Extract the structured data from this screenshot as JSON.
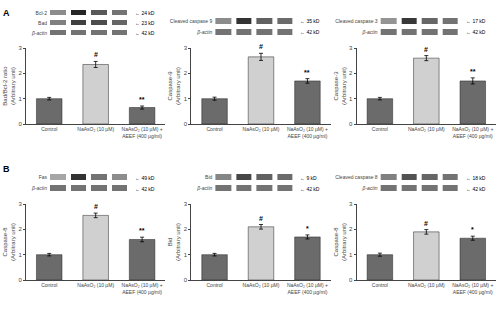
{
  "chart_data": [
    {
      "type": "bar",
      "section": "A",
      "ylabel": "Bad/Bcl-2 ratio\n(Arbitrary unit)",
      "categories": [
        "Control",
        "NaAsO₂ (10 µM)",
        "NaAsO₂ (10 µM) +\nAEEF (400 µg/ml)"
      ],
      "values": [
        1.0,
        2.35,
        0.65
      ],
      "errors": [
        0.05,
        0.12,
        0.06
      ],
      "colors": [
        "#6b6b6b",
        "#d0d0d0",
        "#6b6b6b"
      ],
      "ylim": [
        0,
        3
      ],
      "yticks": [
        0,
        1,
        2,
        3
      ],
      "grid": false,
      "annotations": [
        null,
        "#",
        "**"
      ],
      "blot": {
        "labels": [
          "Bcl-2",
          "Bad",
          "β-actin"
        ],
        "italic": [
          false,
          false,
          true
        ],
        "kd_labels": [
          "← 24 kD",
          "← 23 kD",
          "← 42 kD"
        ],
        "bands": [
          [
            0.45,
            0.85,
            0.65,
            0.55
          ],
          [
            0.5,
            0.75,
            0.7,
            0.6
          ],
          [
            0.55,
            0.55,
            0.55,
            0.55
          ]
        ],
        "zlim": [
          0,
          1
        ]
      }
    },
    {
      "type": "bar",
      "section": "A",
      "ylabel": "Caspase-9\n(Arbitrary unit)",
      "categories": [
        "Control",
        "NaAsO₂ (10 µM)",
        "NaAsO₂ (10 µM) +\nAEEF (400 µg/ml)"
      ],
      "values": [
        1.0,
        2.65,
        1.7
      ],
      "errors": [
        0.06,
        0.14,
        0.09
      ],
      "colors": [
        "#6b6b6b",
        "#d0d0d0",
        "#6b6b6b"
      ],
      "ylim": [
        0,
        3
      ],
      "yticks": [
        0,
        1,
        2,
        3
      ],
      "grid": false,
      "annotations": [
        null,
        "#",
        "**"
      ],
      "blot": {
        "labels": [
          "Cleaved caspase 9",
          "β-actin"
        ],
        "italic": [
          false,
          true
        ],
        "kd_labels": [
          "← 35 kD",
          "← 42 kD"
        ],
        "bands": [
          [
            0.45,
            0.8,
            0.62,
            0.58
          ],
          [
            0.55,
            0.55,
            0.55,
            0.55
          ]
        ],
        "zlim": [
          0,
          1
        ]
      }
    },
    {
      "type": "bar",
      "section": "A",
      "ylabel": "Caspase-3\n(Arbitrary unit)",
      "categories": [
        "Control",
        "NaAsO₂ (10 µM)",
        "NaAsO₂ (10 µM) +\nAEEF (400 µg/ml)"
      ],
      "values": [
        1.0,
        2.6,
        1.7
      ],
      "errors": [
        0.05,
        0.1,
        0.12
      ],
      "colors": [
        "#6b6b6b",
        "#d0d0d0",
        "#6b6b6b"
      ],
      "ylim": [
        0,
        3
      ],
      "yticks": [
        0,
        1,
        2,
        3
      ],
      "grid": false,
      "annotations": [
        null,
        "#",
        "**"
      ],
      "blot": {
        "labels": [
          "Cleaved caspase 3",
          "β-actin"
        ],
        "italic": [
          false,
          true
        ],
        "kd_labels": [
          "← 17 kD",
          "← 42 kD"
        ],
        "bands": [
          [
            0.42,
            0.78,
            0.6,
            0.55
          ],
          [
            0.55,
            0.55,
            0.55,
            0.55
          ]
        ],
        "zlim": [
          0,
          1
        ]
      }
    },
    {
      "type": "bar",
      "section": "B",
      "ylabel": "Caspase-8\n(Arbitrary unit)",
      "categories": [
        "Control",
        "NaAsO₂ (10 µM)",
        "NaAsO₂ (10 µM) +\nAEEF (400 µg/ml)"
      ],
      "values": [
        1.0,
        2.55,
        1.6
      ],
      "errors": [
        0.05,
        0.09,
        0.09
      ],
      "colors": [
        "#6b6b6b",
        "#d0d0d0",
        "#6b6b6b"
      ],
      "ylim": [
        0,
        3
      ],
      "yticks": [
        0,
        1,
        2,
        3
      ],
      "grid": false,
      "annotations": [
        null,
        "#",
        "**"
      ],
      "blot": {
        "labels": [
          "Fas",
          "β-actin"
        ],
        "italic": [
          false,
          true
        ],
        "kd_labels": [
          "← 49 kD",
          "← 42 kD"
        ],
        "bands": [
          [
            0.35,
            0.8,
            0.55,
            0.45
          ],
          [
            0.55,
            0.55,
            0.55,
            0.55
          ]
        ],
        "zlim": [
          0,
          1
        ]
      }
    },
    {
      "type": "bar",
      "section": "B",
      "ylabel": "Bid\n(Arbitrary unit)",
      "categories": [
        "Control",
        "NaAsO₂ (10 µM)",
        "NaAsO₂ (10 µM) +\nAEEF (400 µg/ml)"
      ],
      "values": [
        1.0,
        2.1,
        1.7
      ],
      "errors": [
        0.05,
        0.09,
        0.08
      ],
      "colors": [
        "#6b6b6b",
        "#d0d0d0",
        "#6b6b6b"
      ],
      "ylim": [
        0,
        3
      ],
      "yticks": [
        0,
        1,
        2,
        3
      ],
      "grid": false,
      "annotations": [
        null,
        "#",
        "*"
      ],
      "blot": {
        "labels": [
          "Bid",
          "β-actin"
        ],
        "italic": [
          false,
          true
        ],
        "kd_labels": [
          "← 9 kD",
          "← 42 kD"
        ],
        "bands": [
          [
            0.48,
            0.72,
            0.62,
            0.58
          ],
          [
            0.55,
            0.55,
            0.55,
            0.55
          ]
        ],
        "zlim": [
          0,
          1
        ]
      }
    },
    {
      "type": "bar",
      "section": "B",
      "ylabel": "Caspase-8\n(Arbitrary unit)",
      "categories": [
        "Control",
        "NaAsO₂ (10 µM)",
        "NaAsO₂ (10 µM) +\nAEEF (400 µg/ml)"
      ],
      "values": [
        1.0,
        1.9,
        1.65
      ],
      "errors": [
        0.06,
        0.09,
        0.08
      ],
      "colors": [
        "#6b6b6b",
        "#d0d0d0",
        "#6b6b6b"
      ],
      "ylim": [
        0,
        3
      ],
      "yticks": [
        0,
        1,
        2,
        3
      ],
      "grid": false,
      "annotations": [
        null,
        "#",
        "*"
      ],
      "blot": {
        "labels": [
          "Cleaved caspase 8",
          "β-actin"
        ],
        "italic": [
          false,
          true
        ],
        "kd_labels": [
          "← 18 kD",
          "← 42 kD"
        ],
        "bands": [
          [
            0.5,
            0.68,
            0.6,
            0.55
          ],
          [
            0.55,
            0.55,
            0.55,
            0.55
          ]
        ],
        "zlim": [
          0,
          1
        ]
      }
    }
  ]
}
